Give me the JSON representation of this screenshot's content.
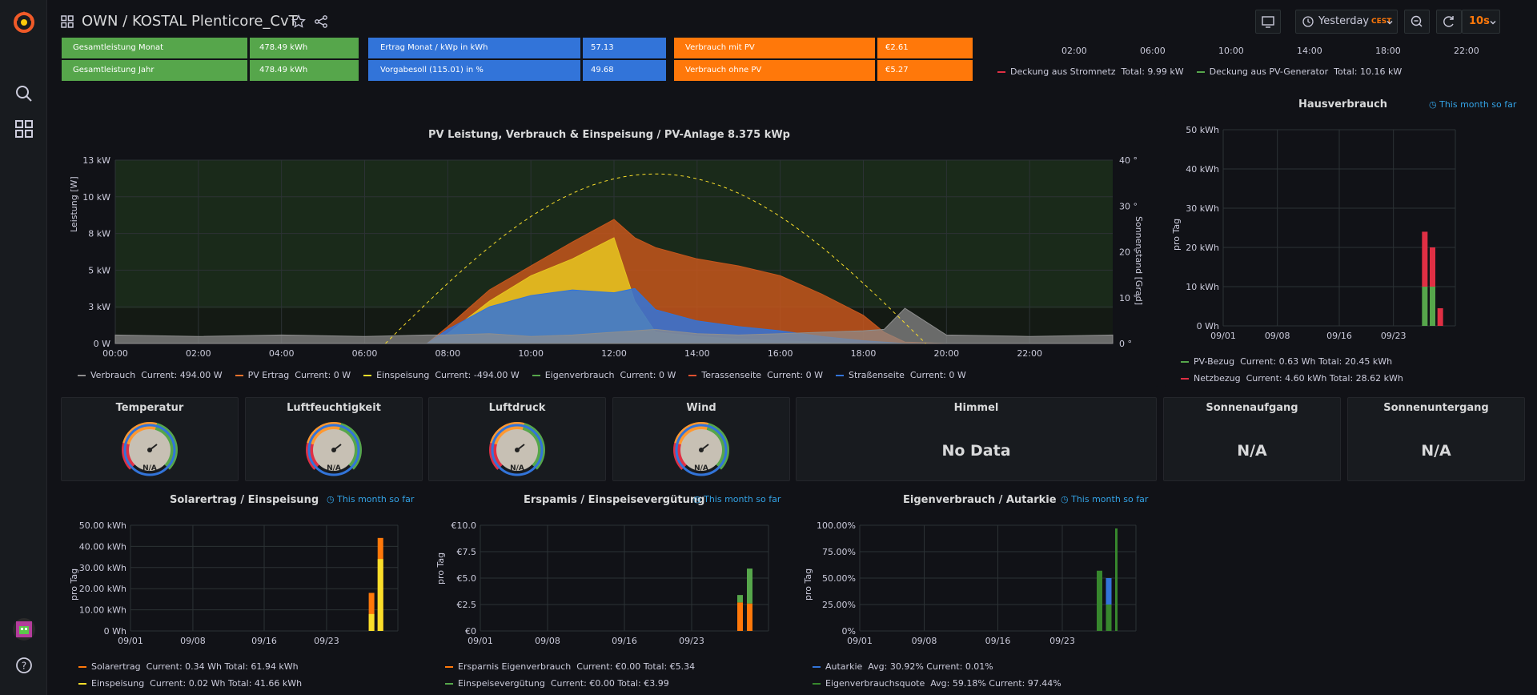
{
  "app": {
    "title": "OWN / KOSTAL Plenticore_CvT"
  },
  "toolbar": {
    "time_label": "Yesterday",
    "tz": "CEST",
    "refresh": "10s"
  },
  "stats_green": [
    {
      "label": "Gesamtleistung Monat",
      "value": "478.49 kWh"
    },
    {
      "label": "Gesamtleistung Jahr",
      "value": "478.49 kWh"
    }
  ],
  "stats_blue": [
    {
      "label": "Ertrag Monat / kWp in kWh",
      "value": "57.13"
    },
    {
      "label": "Vorgabesoll (115.01) in %",
      "value": "49.68"
    }
  ],
  "stats_orange": [
    {
      "label": "Verbrauch mit PV",
      "value": "€2.61"
    },
    {
      "label": "Verbrauch ohne PV",
      "value": "€5.27"
    }
  ],
  "top_right": {
    "ticks": [
      "02:00",
      "06:00",
      "10:00",
      "14:00",
      "18:00",
      "22:00"
    ],
    "legend": [
      {
        "name": "Deckung aus Stromnetz",
        "stat": "Total: 9.99 kW",
        "color": "#e02f44"
      },
      {
        "name": "Deckung aus PV-Generator",
        "stat": "Total: 10.16 kW",
        "color": "#56a64b"
      }
    ]
  },
  "main_chart": {
    "title": "PV Leistung, Verbrauch & Einspeisung / PV-Anlage 8.375 kWp",
    "ylabel_left": "Leistung [W]",
    "ylabel_right": "Sonnenstand [Grad]",
    "y_ticks_left": [
      "13 kW",
      "10 kW",
      "8 kW",
      "5 kW",
      "3 kW",
      "0 W"
    ],
    "y_ticks_right": [
      "40 °",
      "30 °",
      "20 °",
      "10 °",
      "0 °"
    ],
    "x_ticks": [
      "00:00",
      "02:00",
      "04:00",
      "06:00",
      "08:00",
      "10:00",
      "12:00",
      "14:00",
      "16:00",
      "18:00",
      "20:00",
      "22:00"
    ],
    "legend": [
      {
        "name": "Verbrauch",
        "stat": "Current: 494.00 W",
        "color": "#8e8e8e"
      },
      {
        "name": "PV Ertrag",
        "stat": "Current: 0 W",
        "color": "#f2722c"
      },
      {
        "name": "Einspeisung",
        "stat": "Current: -494.00 W",
        "color": "#fade2a"
      },
      {
        "name": "Eigenverbrauch",
        "stat": "Current: 0 W",
        "color": "#56a64b"
      },
      {
        "name": "Terassenseite",
        "stat": "Current: 0 W",
        "color": "#e0502f"
      },
      {
        "name": "Straßenseite",
        "stat": "Current: 0 W",
        "color": "#3274d9"
      }
    ]
  },
  "chart_data": [
    {
      "type": "area",
      "title": "PV Leistung, Verbrauch & Einspeisung / PV-Anlage 8.375 kWp",
      "ylabel": "Leistung [W]",
      "ylim_kw": [
        0,
        13
      ],
      "x_hours": [
        0,
        2,
        4,
        6,
        7.5,
        8,
        9,
        10,
        11,
        12,
        12.5,
        13,
        14,
        15,
        16,
        17,
        18,
        18.5,
        19,
        20,
        22,
        24
      ],
      "series": [
        {
          "name": "PV Ertrag",
          "values_kw": [
            0,
            0,
            0,
            0,
            0,
            1.2,
            3.8,
            5.5,
            7.2,
            8.8,
            7.5,
            6.8,
            6.0,
            5.5,
            4.8,
            3.5,
            2.0,
            0.8,
            0.1,
            0,
            0,
            0
          ]
        },
        {
          "name": "Einspeisung",
          "values_kw": [
            0,
            0,
            0,
            0,
            0,
            0.7,
            3.0,
            4.8,
            6.0,
            7.5,
            3.0,
            0.8,
            0.5,
            0.3,
            0.2,
            0.1,
            0,
            0,
            0,
            0,
            0,
            0
          ]
        },
        {
          "name": "Straßenseite",
          "values_kw": [
            0,
            0,
            0,
            0,
            0,
            1.0,
            2.6,
            3.4,
            3.8,
            3.6,
            3.9,
            2.4,
            1.6,
            1.2,
            0.9,
            0.5,
            0.2,
            0.1,
            0,
            0,
            0,
            0
          ]
        },
        {
          "name": "Verbrauch",
          "values_kw": [
            0.6,
            0.5,
            0.6,
            0.5,
            0.6,
            0.6,
            0.7,
            0.5,
            0.6,
            0.8,
            0.9,
            1.0,
            0.7,
            0.6,
            0.7,
            0.8,
            0.9,
            1.0,
            2.5,
            0.6,
            0.5,
            0.6
          ]
        }
      ]
    },
    {
      "type": "bar",
      "title": "Hausverbrauch",
      "ylabel": "pro Tag",
      "x_ticks": [
        "09/01",
        "09/08",
        "09/16",
        "09/23"
      ],
      "y_ticks": [
        "50 kWh",
        "40 kWh",
        "30 kWh",
        "20 kWh",
        "10 kWh",
        "0 Wh"
      ],
      "ylim": [
        0,
        50
      ],
      "bars": [
        {
          "day": 27,
          "pv": 10,
          "netz": 14
        },
        {
          "day": 28,
          "pv": 10,
          "netz": 10
        },
        {
          "day": 29,
          "pv": 0,
          "netz": 4.5
        }
      ],
      "series": [
        {
          "name": "PV-Bezug",
          "stat": "Current: 0.63 Wh  Total: 20.45 kWh",
          "color": "#56a64b"
        },
        {
          "name": "Netzbezug",
          "stat": "Current: 4.60 kWh  Total: 28.62 kWh",
          "color": "#e02f44"
        }
      ]
    },
    {
      "type": "bar",
      "title": "Solarertrag / Einspeisung",
      "ylabel": "pro Tag",
      "x_ticks": [
        "09/01",
        "09/08",
        "09/16",
        "09/23"
      ],
      "y_ticks": [
        "50.00 kWh",
        "40.00 kWh",
        "30.00 kWh",
        "20.00 kWh",
        "10.00 kWh",
        "0 Wh"
      ],
      "ylim": [
        0,
        50
      ],
      "bars": [
        {
          "day": 28,
          "solar": 18,
          "einsp": 8
        },
        {
          "day": 29,
          "solar": 44,
          "einsp": 34
        }
      ],
      "series": [
        {
          "name": "Solarertrag",
          "stat": "Current: 0.34 Wh  Total: 61.94 kWh",
          "color": "#ff780a"
        },
        {
          "name": "Einspeisung",
          "stat": "Current: 0.02 Wh  Total: 41.66 kWh",
          "color": "#fade2a"
        }
      ]
    },
    {
      "type": "bar",
      "title": "Erspamis / Einspeisevergütung",
      "ylabel": "pro Tag",
      "x_ticks": [
        "09/01",
        "09/08",
        "09/16",
        "09/23"
      ],
      "y_ticks": [
        "€10.0",
        "€7.5",
        "€5.0",
        "€2.5",
        "€0"
      ],
      "ylim": [
        0,
        10
      ],
      "bars": [
        {
          "day": 28,
          "ersparnis": 2.7,
          "verguetung": 0.7
        },
        {
          "day": 29,
          "ersparnis": 2.6,
          "verguetung": 3.3
        }
      ],
      "series": [
        {
          "name": "Ersparnis Eigenverbrauch",
          "stat": "Current: €0.00  Total: €5.34",
          "color": "#ff780a"
        },
        {
          "name": "Einspeisevergütung",
          "stat": "Current: €0.00  Total: €3.99",
          "color": "#56a64b"
        }
      ]
    },
    {
      "type": "bar",
      "title": "Eigenverbrauch / Autarkie",
      "x_ticks": [
        "09/01",
        "09/08",
        "09/16",
        "09/23"
      ],
      "y_ticks": [
        "100.00%",
        "75.00%",
        "50.00%",
        "25.00%",
        "0%"
      ],
      "ylim": [
        0,
        100
      ],
      "series": [
        {
          "name": "Autarkie",
          "stat": "Avg: 30.92%  Current: 0.01%",
          "color": "#3274d9"
        },
        {
          "name": "Eigenverbrauchsquote",
          "stat": "Avg: 59.18%  Current: 97.44%",
          "color": "#37872d"
        }
      ]
    }
  ],
  "gauges": [
    {
      "title": "Temperatur",
      "value": "N/A"
    },
    {
      "title": "Luftfeuchtigkeit",
      "value": "N/A"
    },
    {
      "title": "Luftdruck",
      "value": "N/A"
    },
    {
      "title": "Wind",
      "value": "N/A"
    }
  ],
  "stat_panels": [
    {
      "title": "Himmel",
      "value": "No Data"
    },
    {
      "title": "Sonnenaufgang",
      "value": "N/A"
    },
    {
      "title": "Sonnenuntergang",
      "value": "N/A"
    }
  ],
  "panels": {
    "haus": {
      "title": "Hausverbrauch",
      "sofar": "This month so far",
      "ylabel": "pro Tag"
    },
    "solar": {
      "title": "Solarertrag / Einspeisung",
      "sofar": "This month so far",
      "ylabel": "pro Tag"
    },
    "ersparnis": {
      "title": "Erspamis / Einspeisevergütung",
      "sofar": "This month so far",
      "ylabel": "pro Tag"
    },
    "eigen": {
      "title": "Eigenverbrauch / Autarkie",
      "sofar": "This month so far",
      "ylabel": "pro Tag"
    }
  }
}
